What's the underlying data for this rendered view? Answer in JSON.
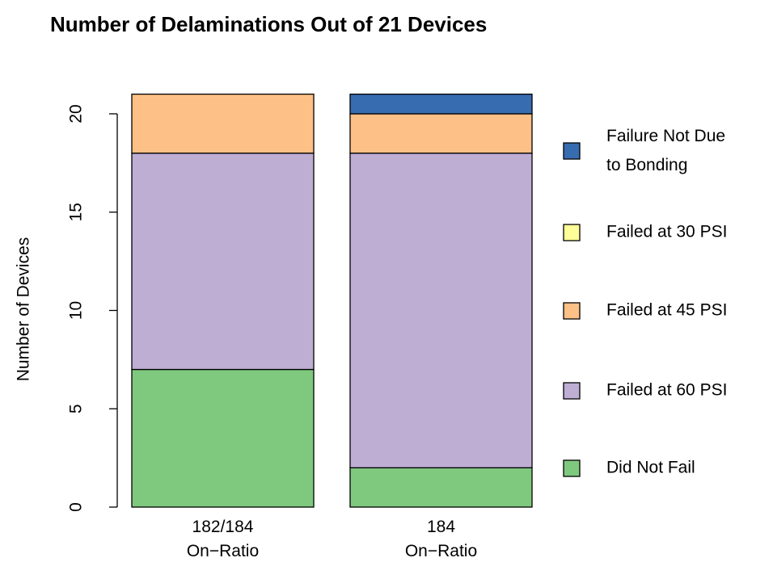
{
  "chart_data": {
    "type": "stacked_bar",
    "title": "Number of Delaminations Out of 21 Devices",
    "y_label": "Number of Devices",
    "categories": [
      "182/184\nOn−Ratio",
      "184\nOn−Ratio"
    ],
    "series": [
      {
        "name": "Did Not Fail",
        "color": "#7fc97f",
        "values": [
          7,
          2
        ]
      },
      {
        "name": "Failed at 60 PSI",
        "color": "#beaed4",
        "values": [
          11,
          16
        ]
      },
      {
        "name": "Failed at 45 PSI",
        "color": "#fdc086",
        "values": [
          3,
          2
        ]
      },
      {
        "name": "Failed at 30 PSI",
        "color": "#ffff99",
        "values": [
          0,
          0
        ]
      },
      {
        "name": "Failure Not Due\nto Bonding",
        "color": "#386cb0",
        "values": [
          0,
          1
        ]
      }
    ],
    "ylim": [
      0,
      21
    ],
    "yticks": [
      0,
      5,
      10,
      15,
      20
    ],
    "legend": "right"
  }
}
